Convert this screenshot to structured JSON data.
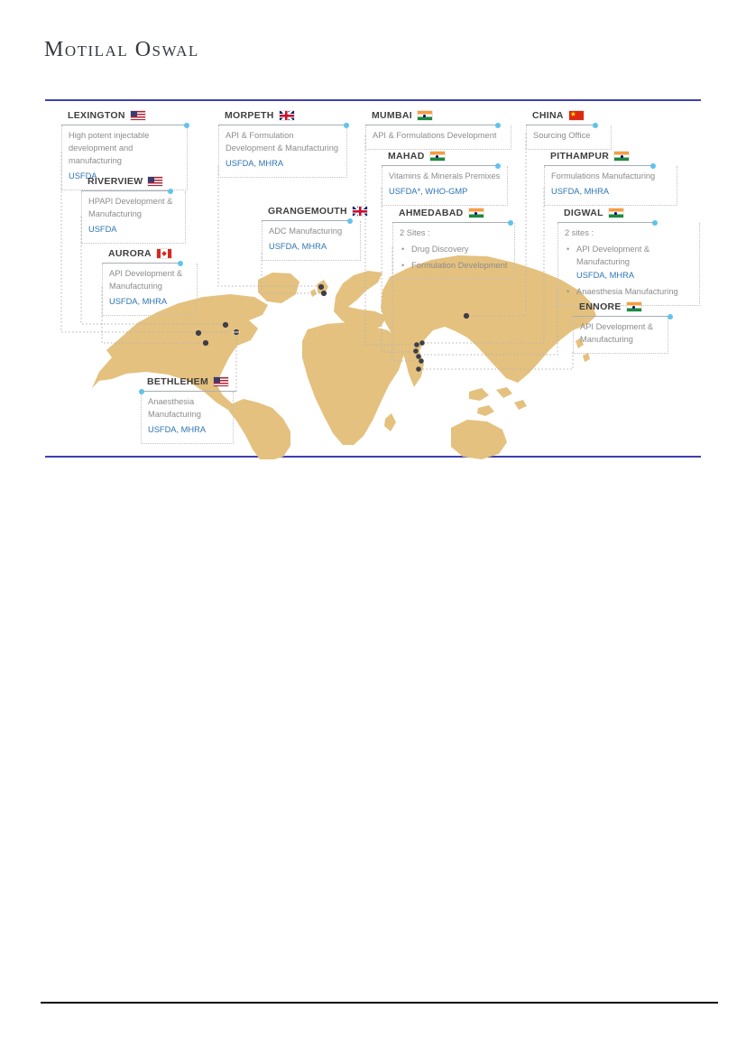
{
  "logo": {
    "text": "Motilal Oswal"
  },
  "colors": {
    "map_land": "#e4c17e",
    "approval_blue": "#2d74b5",
    "figure_rule_purple": "#4040b2",
    "header_text": "#3f3f3f",
    "body_text": "#8c8c8c",
    "site_marker": "#3e3e4a",
    "endpoint_dot_blue": "#5fc3ea"
  },
  "callouts": [
    {
      "id": "lexington",
      "name": "LEXINGTON",
      "flag": "us",
      "lines": [
        {
          "t": "High potent injectable development and manufacturing",
          "s": "gray"
        },
        {
          "t": "USFDA",
          "s": "blue"
        }
      ]
    },
    {
      "id": "morpeth",
      "name": "MORPETH",
      "flag": "uk",
      "lines": [
        {
          "t": "API & Formulation Development & Manufacturing",
          "s": "gray"
        },
        {
          "t": "USFDA, MHRA",
          "s": "blue"
        }
      ]
    },
    {
      "id": "mumbai",
      "name": "MUMBAI",
      "flag": "in",
      "lines": [
        {
          "t": "API & Formulations Development",
          "s": "gray"
        }
      ]
    },
    {
      "id": "china",
      "name": "CHINA",
      "flag": "cn",
      "lines": [
        {
          "t": "Sourcing Office",
          "s": "gray"
        }
      ]
    },
    {
      "id": "riverview",
      "name": "RIVERVIEW",
      "flag": "us",
      "lines": [
        {
          "t": "HPAPI Development & Manufacturing",
          "s": "gray"
        },
        {
          "t": "USFDA",
          "s": "blue"
        }
      ]
    },
    {
      "id": "mahad",
      "name": "MAHAD",
      "flag": "in",
      "lines": [
        {
          "t": "Vitamins & Minerals Premixes",
          "s": "gray"
        },
        {
          "t": "USFDA*, WHO-GMP",
          "s": "blue"
        }
      ]
    },
    {
      "id": "pithampur",
      "name": "PITHAMPUR",
      "flag": "in",
      "lines": [
        {
          "t": "Formulations  Manufacturing",
          "s": "gray"
        },
        {
          "t": "USFDA, MHRA",
          "s": "blue"
        }
      ]
    },
    {
      "id": "aurora",
      "name": "AURORA",
      "flag": "ca",
      "lines": [
        {
          "t": "API Development & Manufacturing",
          "s": "gray"
        },
        {
          "t": "USFDA, MHRA",
          "s": "blue"
        }
      ]
    },
    {
      "id": "grangemouth",
      "name": "GRANGEMOUTH",
      "flag": "uk",
      "lines": [
        {
          "t": "ADC Manufacturing",
          "s": "gray"
        },
        {
          "t": "USFDA, MHRA",
          "s": "blue"
        }
      ]
    },
    {
      "id": "ahmedabad",
      "name": "AHMEDABAD",
      "flag": "in",
      "lines": [
        {
          "t": "2 Sites :",
          "s": "gray"
        },
        {
          "t": "Drug Discovery",
          "s": "bullet"
        },
        {
          "t": "Formulation Development",
          "s": "bullet"
        }
      ]
    },
    {
      "id": "digwal",
      "name": "DIGWAL",
      "flag": "in",
      "lines": [
        {
          "t": "2 sites :",
          "s": "gray"
        },
        {
          "t": "API Development & Manufacturing",
          "s": "bullet"
        },
        {
          "t": "USFDA, MHRA",
          "s": "blue-indent"
        },
        {
          "t": "Anaesthesia Manufacturing",
          "s": "bullet"
        }
      ]
    },
    {
      "id": "ennore",
      "name": "ENNORE",
      "flag": "in",
      "lines": [
        {
          "t": "API Development & Manufacturing",
          "s": "gray"
        }
      ]
    },
    {
      "id": "bethlehem",
      "name": "BETHLEHEM",
      "flag": "us",
      "lines": [
        {
          "t": "Anaesthesia Manufacturing",
          "s": "gray"
        },
        {
          "t": "USFDA, MHRA",
          "s": "blue"
        }
      ]
    }
  ]
}
